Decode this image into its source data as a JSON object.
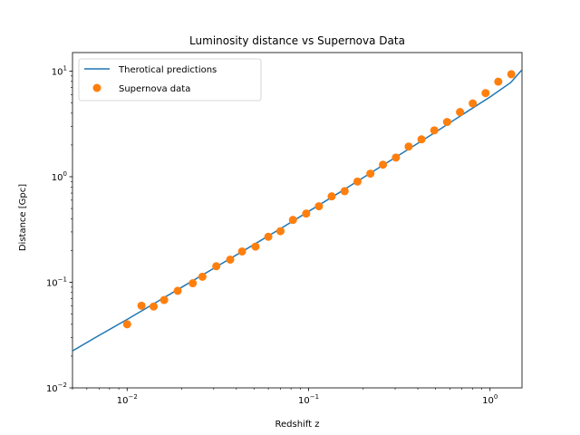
{
  "chart_data": {
    "type": "line",
    "title": "Luminosity distance vs Supernova Data",
    "xlabel": "Redshift z",
    "ylabel": "Distance [Gpc]",
    "xscale": "log",
    "yscale": "log",
    "xlim": [
      0.005,
      1.5
    ],
    "ylim": [
      0.01,
      15
    ],
    "grid": false,
    "legend": "top-left",
    "x_ticks": [
      {
        "value": 0.01,
        "base": "10",
        "exp": "−2"
      },
      {
        "value": 0.1,
        "base": "10",
        "exp": "−1"
      },
      {
        "value": 1,
        "base": "10",
        "exp": "0"
      }
    ],
    "y_ticks": [
      {
        "value": 0.01,
        "base": "10",
        "exp": "−2"
      },
      {
        "value": 0.1,
        "base": "10",
        "exp": "−1"
      },
      {
        "value": 1,
        "base": "10",
        "exp": "0"
      },
      {
        "value": 10,
        "base": "10",
        "exp": "1"
      }
    ],
    "series": [
      {
        "name": "Therotical predictions",
        "kind": "line",
        "color": "#1f77b4",
        "x": [
          0.005,
          0.007,
          0.01,
          0.014,
          0.02,
          0.03,
          0.05,
          0.07,
          0.1,
          0.15,
          0.2,
          0.3,
          0.5,
          0.7,
          1.0,
          1.3,
          1.5
        ],
        "y": [
          0.0224,
          0.0314,
          0.0445,
          0.0625,
          0.0898,
          0.1355,
          0.228,
          0.322,
          0.469,
          0.719,
          0.98,
          1.52,
          2.64,
          3.85,
          5.7,
          7.8,
          10.3
        ]
      },
      {
        "name": "Supernova data",
        "kind": "scatter",
        "color": "#ff7f0e",
        "x": [
          0.01,
          0.012,
          0.014,
          0.016,
          0.019,
          0.023,
          0.026,
          0.031,
          0.037,
          0.043,
          0.051,
          0.06,
          0.07,
          0.082,
          0.097,
          0.114,
          0.134,
          0.158,
          0.186,
          0.219,
          0.257,
          0.303,
          0.356,
          0.419,
          0.493,
          0.58,
          0.683,
          0.803,
          0.945,
          1.11,
          1.31
        ],
        "y": [
          0.04,
          0.06,
          0.059,
          0.068,
          0.083,
          0.098,
          0.113,
          0.142,
          0.164,
          0.196,
          0.218,
          0.27,
          0.305,
          0.39,
          0.448,
          0.525,
          0.652,
          0.73,
          0.9,
          1.07,
          1.3,
          1.52,
          1.93,
          2.26,
          2.75,
          3.3,
          4.1,
          4.95,
          6.2,
          7.95,
          9.35
        ]
      }
    ]
  }
}
